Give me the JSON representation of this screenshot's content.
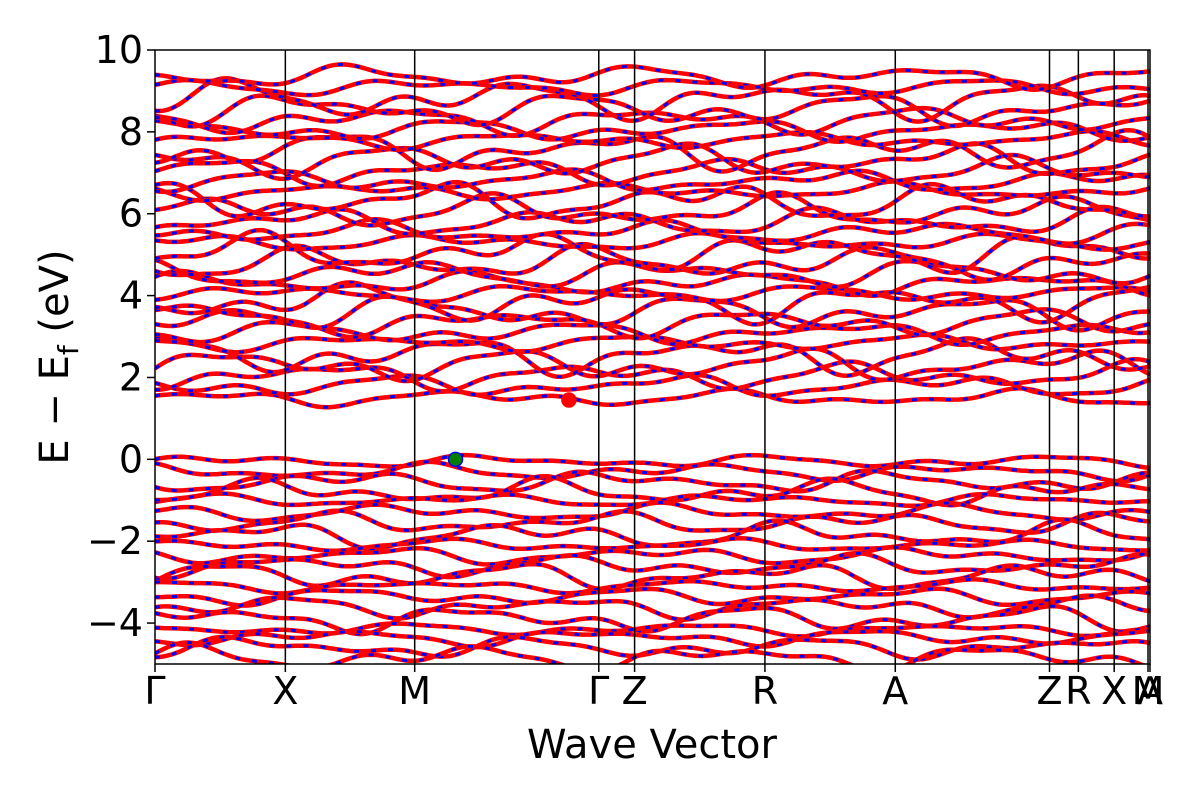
{
  "chart_data": {
    "type": "line",
    "xlabel": "Wave Vector",
    "ylabel": "E − E",
    "ylabel_sub": "f",
    "ylabel_unit": " (eV)",
    "ylim": [
      -5,
      10
    ],
    "yticks": [
      10,
      8,
      6,
      4,
      2,
      0,
      -2,
      -4
    ],
    "ytick_labels": [
      "10",
      "8",
      "6",
      "4",
      "2",
      "0",
      "−2",
      "−4"
    ],
    "kpath": [
      {
        "label": "Γ",
        "pos": 0.0
      },
      {
        "label": "X",
        "pos": 0.131
      },
      {
        "label": "M",
        "pos": 0.261
      },
      {
        "label": "Γ",
        "pos": 0.446
      },
      {
        "label": "Z",
        "pos": 0.482
      },
      {
        "label": "R",
        "pos": 0.613
      },
      {
        "label": "A",
        "pos": 0.744
      },
      {
        "label": "Z",
        "pos": 0.899
      },
      {
        "label": "R",
        "pos": 0.928
      },
      {
        "label": "X",
        "pos": 0.964
      },
      {
        "label": "M",
        "pos": 0.998
      },
      {
        "label": "A",
        "pos": 1.0
      }
    ],
    "special_points": [
      {
        "name": "VBM",
        "x": 0.302,
        "y": 0.0,
        "color": "#008000"
      },
      {
        "name": "CBM",
        "x": 0.416,
        "y": 1.45,
        "color": "#ff0000"
      }
    ],
    "series": [
      {
        "spin": "up",
        "color": "#ff0000"
      },
      {
        "spin": "down",
        "color": "#0000ff"
      }
    ],
    "bands_valence": [
      -0.05,
      -0.3,
      -0.55,
      -0.8,
      -1.0,
      -1.3,
      -1.55,
      -1.85,
      -2.1,
      -2.35,
      -2.6,
      -2.85,
      -3.1,
      -3.35,
      -3.6,
      -3.9,
      -4.15,
      -4.35,
      -4.6,
      -4.85
    ],
    "bands_conduction": [
      1.5,
      1.8,
      2.05,
      2.3,
      2.55,
      2.85,
      3.1,
      3.35,
      3.6,
      3.85,
      4.05,
      4.3,
      4.55,
      4.8,
      5.05,
      5.3,
      5.55,
      5.8,
      6.05,
      6.3,
      6.55,
      6.8,
      7.05,
      7.3,
      7.55,
      7.8,
      8.05,
      8.3,
      8.55,
      8.8,
      9.1,
      9.35
    ]
  }
}
